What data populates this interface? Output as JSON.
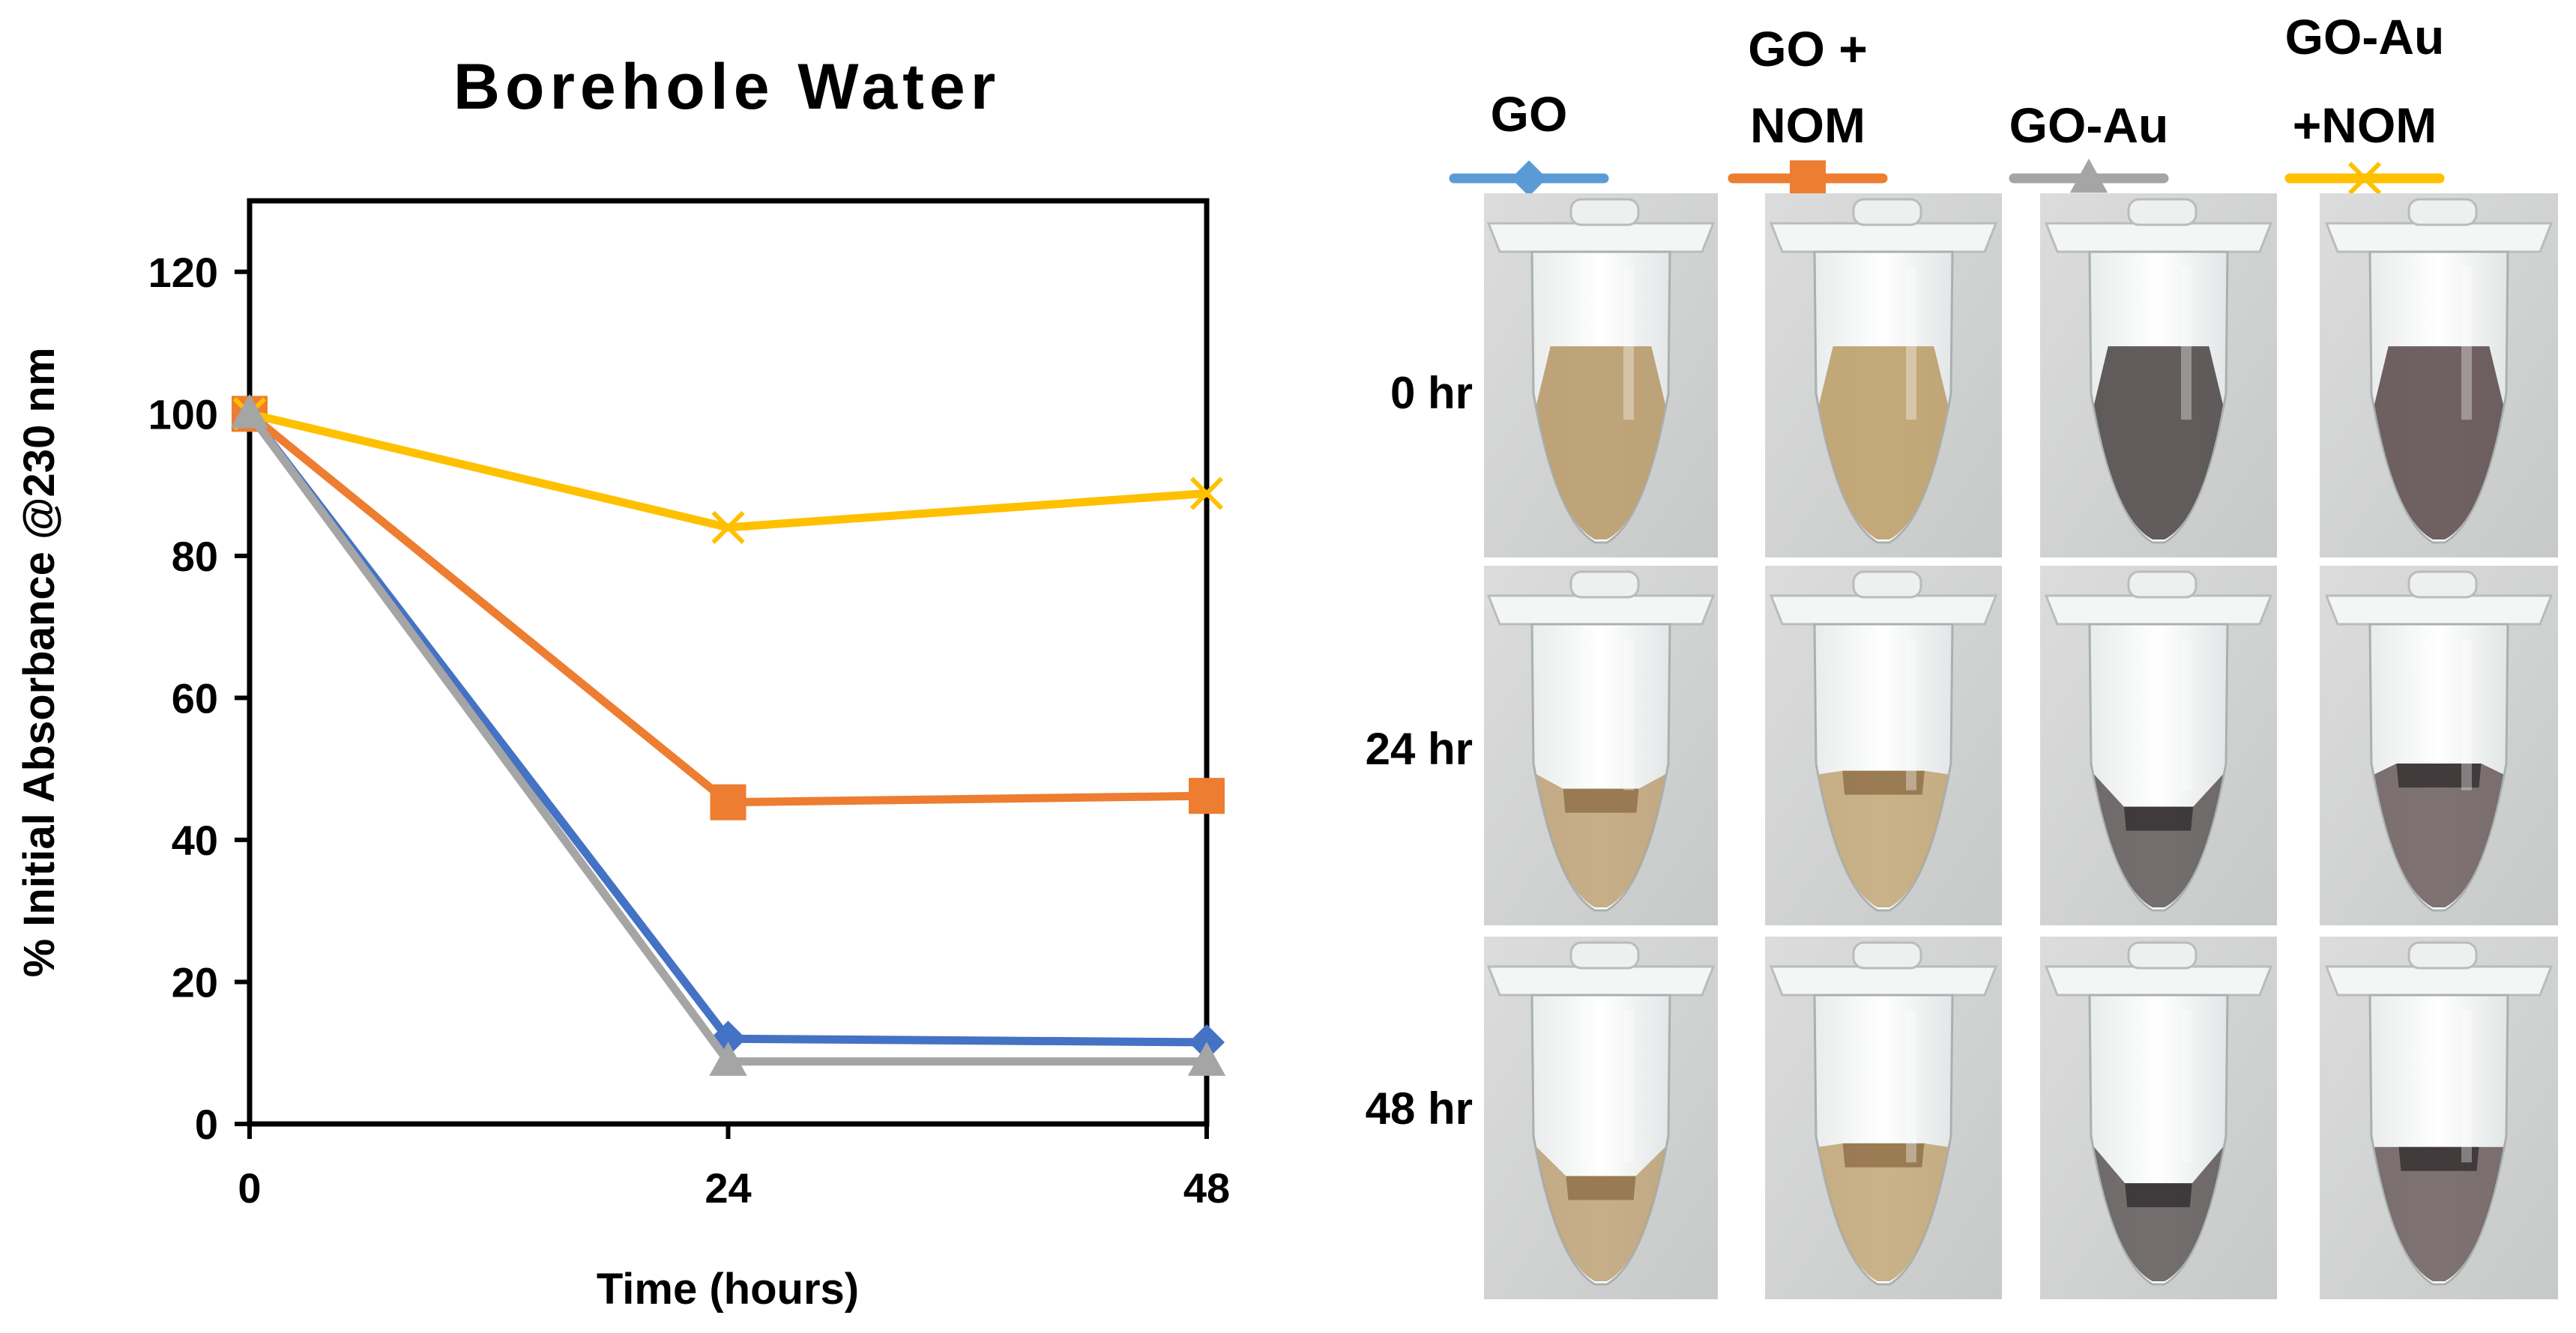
{
  "chart_data": {
    "type": "line",
    "title": "Borehole Water",
    "xlabel": "Time (hours)",
    "ylabel": "% Initial Absorbance @230 nm",
    "x": [
      0,
      24,
      48
    ],
    "xlim": [
      0,
      48
    ],
    "ylim": [
      0,
      130
    ],
    "xticks": [
      "0",
      "24",
      "48"
    ],
    "yticks": [
      "0",
      "20",
      "40",
      "60",
      "80",
      "100",
      "120"
    ],
    "grid": false,
    "series": [
      {
        "name": "GO",
        "color": "#4472C4",
        "marker": "diamond",
        "values": [
          100,
          12,
          11.5
        ]
      },
      {
        "name": "GO + NOM",
        "color": "#ED7D31",
        "marker": "square",
        "values": [
          100,
          45.3,
          46.2
        ]
      },
      {
        "name": "GO-Au",
        "color": "#A5A5A5",
        "marker": "triangle",
        "values": [
          100,
          8.8,
          8.8
        ]
      },
      {
        "name": "GO-Au +NOM",
        "color": "#FFC000",
        "marker": "x",
        "values": [
          100,
          84,
          88.8
        ]
      }
    ]
  },
  "photo_panel": {
    "columns": [
      {
        "label_lines": [
          "GO"
        ],
        "series_color": "#5B9BD5",
        "marker": "diamond",
        "icon": "diamond-marker-icon"
      },
      {
        "label_lines": [
          "GO +",
          "NOM"
        ],
        "series_color": "#ED7D31",
        "marker": "square",
        "icon": "square-marker-icon"
      },
      {
        "label_lines": [
          "GO-Au"
        ],
        "series_color": "#A5A5A5",
        "marker": "triangle",
        "icon": "triangle-marker-icon"
      },
      {
        "label_lines": [
          "GO-Au",
          "+NOM"
        ],
        "series_color": "#FFC000",
        "marker": "x",
        "icon": "x-marker-icon"
      }
    ],
    "rows": [
      {
        "label": "0 hr"
      },
      {
        "label": "24 hr"
      },
      {
        "label": "48 hr"
      }
    ],
    "liquid_colors": [
      "#b89a6c",
      "#bd9f6a",
      "#514a4a",
      "#5f4f50"
    ]
  }
}
